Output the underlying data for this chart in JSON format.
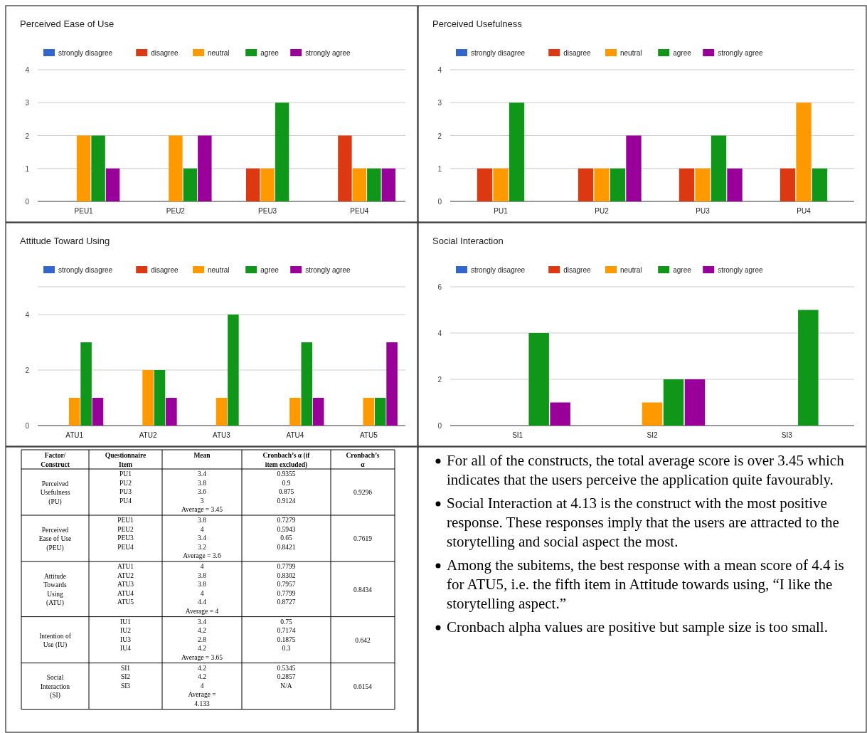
{
  "chart_data": [
    {
      "type": "bar",
      "title": "Perceived Ease of Use",
      "categories": [
        "PEU1",
        "PEU2",
        "PEU3",
        "PEU4"
      ],
      "ylim": [
        0,
        4
      ],
      "yticks": [
        0,
        1,
        2,
        3,
        4
      ],
      "grid": "y",
      "legend": "top left",
      "series": [
        {
          "name": "strongly disagree",
          "color": "#3366cc",
          "values": [
            0,
            0,
            0,
            0
          ]
        },
        {
          "name": "disagree",
          "color": "#dc3912",
          "values": [
            0,
            0,
            1,
            2
          ]
        },
        {
          "name": "neutral",
          "color": "#ff9900",
          "values": [
            2,
            2,
            1,
            1
          ]
        },
        {
          "name": "agree",
          "color": "#109618",
          "values": [
            2,
            1,
            3,
            1
          ]
        },
        {
          "name": "strongly agree",
          "color": "#990099",
          "values": [
            1,
            2,
            0,
            1
          ]
        }
      ]
    },
    {
      "type": "bar",
      "title": "Perceived Usefulness",
      "categories": [
        "PU1",
        "PU2",
        "PU3",
        "PU4"
      ],
      "ylim": [
        0,
        4
      ],
      "yticks": [
        0,
        1,
        2,
        3,
        4
      ],
      "grid": "y",
      "legend": "top left",
      "series": [
        {
          "name": "strongly disagree",
          "color": "#3366cc",
          "values": [
            0,
            0,
            0,
            0
          ]
        },
        {
          "name": "disagree",
          "color": "#dc3912",
          "values": [
            1,
            1,
            1,
            1
          ]
        },
        {
          "name": "neutral",
          "color": "#ff9900",
          "values": [
            1,
            1,
            1,
            3
          ]
        },
        {
          "name": "agree",
          "color": "#109618",
          "values": [
            3,
            1,
            2,
            1
          ]
        },
        {
          "name": "strongly agree",
          "color": "#990099",
          "values": [
            0,
            2,
            1,
            0
          ]
        }
      ]
    },
    {
      "type": "bar",
      "title": "Attitude Toward Using",
      "categories": [
        "ATU1",
        "ATU2",
        "ATU3",
        "ATU4",
        "ATU5"
      ],
      "ylim": [
        0,
        5
      ],
      "yticks": [
        0,
        2,
        4,
        {
          "value": 5,
          "label": null
        }
      ],
      "grid": "y",
      "legend": "top left",
      "series": [
        {
          "name": "strongly disagree",
          "color": "#3366cc",
          "values": [
            0,
            0,
            0,
            0,
            0
          ]
        },
        {
          "name": "disagree",
          "color": "#dc3912",
          "values": [
            0,
            0,
            0,
            0,
            0
          ]
        },
        {
          "name": "neutral",
          "color": "#ff9900",
          "values": [
            1,
            2,
            1,
            1,
            1
          ]
        },
        {
          "name": "agree",
          "color": "#109618",
          "values": [
            3,
            2,
            4,
            3,
            1
          ]
        },
        {
          "name": "strongly agree",
          "color": "#990099",
          "values": [
            1,
            1,
            0,
            1,
            3
          ]
        }
      ]
    },
    {
      "type": "bar",
      "title": "Social Interaction",
      "categories": [
        "SI1",
        "SI2",
        "SI3"
      ],
      "ylim": [
        0,
        6
      ],
      "yticks": [
        0,
        2,
        4,
        6
      ],
      "grid": "y",
      "legend": "top left",
      "series": [
        {
          "name": "strongly disagree",
          "color": "#3366cc",
          "values": [
            0,
            0,
            0
          ]
        },
        {
          "name": "disagree",
          "color": "#dc3912",
          "values": [
            0,
            0,
            0
          ]
        },
        {
          "name": "neutral",
          "color": "#ff9900",
          "values": [
            0,
            1,
            0
          ]
        },
        {
          "name": "agree",
          "color": "#109618",
          "values": [
            4,
            2,
            5
          ]
        },
        {
          "name": "strongly agree",
          "color": "#990099",
          "values": [
            1,
            2,
            0
          ]
        }
      ]
    },
    {
      "type": "other",
      "annotations": [
        "Factor/\nConstruct",
        "Questionnaire\nItem",
        "Mean",
        "Cronbach’s α (if\nitem excluded)",
        "Cronbach’s\nα",
        "Perceived\nUsefulness\n(PU)",
        "PU1\nPU2\nPU3\nPU4",
        "3.4\n3.8\n3.6\n3\nAverage = 3.45",
        "0.9355\n0.9\n0.875\n0.9124",
        "0.9296",
        "Perceived\nEase of Use\n(PEU)",
        "PEU1\nPEU2\nPEU3\nPEU4",
        "3.8\n4\n3.4\n3.2\nAverage = 3.6",
        "0.7279\n0.5943\n0.65\n0.8421",
        "0.7619",
        "Attitude\nTowards\nUsing\n(ATU)",
        "ATU1\nATU2\nATU3\nATU4\nATU5",
        "4\n3.8\n3.8\n4\n4.4\nAverage = 4",
        "0.7799\n0.8302\n0.7957\n0.7799\n0.8727",
        "0.8434",
        "Intention of\nUse (IU)",
        "IU1\nIU2\nIU3\nIU4",
        "3.4\n4.2\n2.8\n4.2\nAverage = 3.65",
        "0.75\n0.7174\n0.1875\n0.3",
        "0.642",
        "Social\nInteraction\n(SI)",
        "SI1\nSI2\nSI3",
        "4.2\n4.2\n4\nAverage =\n4.133",
        "0.5345\n0.2857\nN/A",
        "0.6154"
      ]
    },
    {
      "type": "other",
      "annotations": [
        "For all of the constructs, the total average score is over 3.45 which indicates that the users perceive the application quite favourably.",
        "Social Interaction at 4.13 is the construct with the most positive response. These responses imply that the users are attracted to the storytelling and social aspect the most.",
        "Among the subitems, the best response with a mean score of 4.4 is for ATU5, i.e. the fifth item in Attitude towards using, “I like the storytelling aspect.”",
        "Cronbach alpha values are positive but sample size is too small."
      ]
    }
  ]
}
